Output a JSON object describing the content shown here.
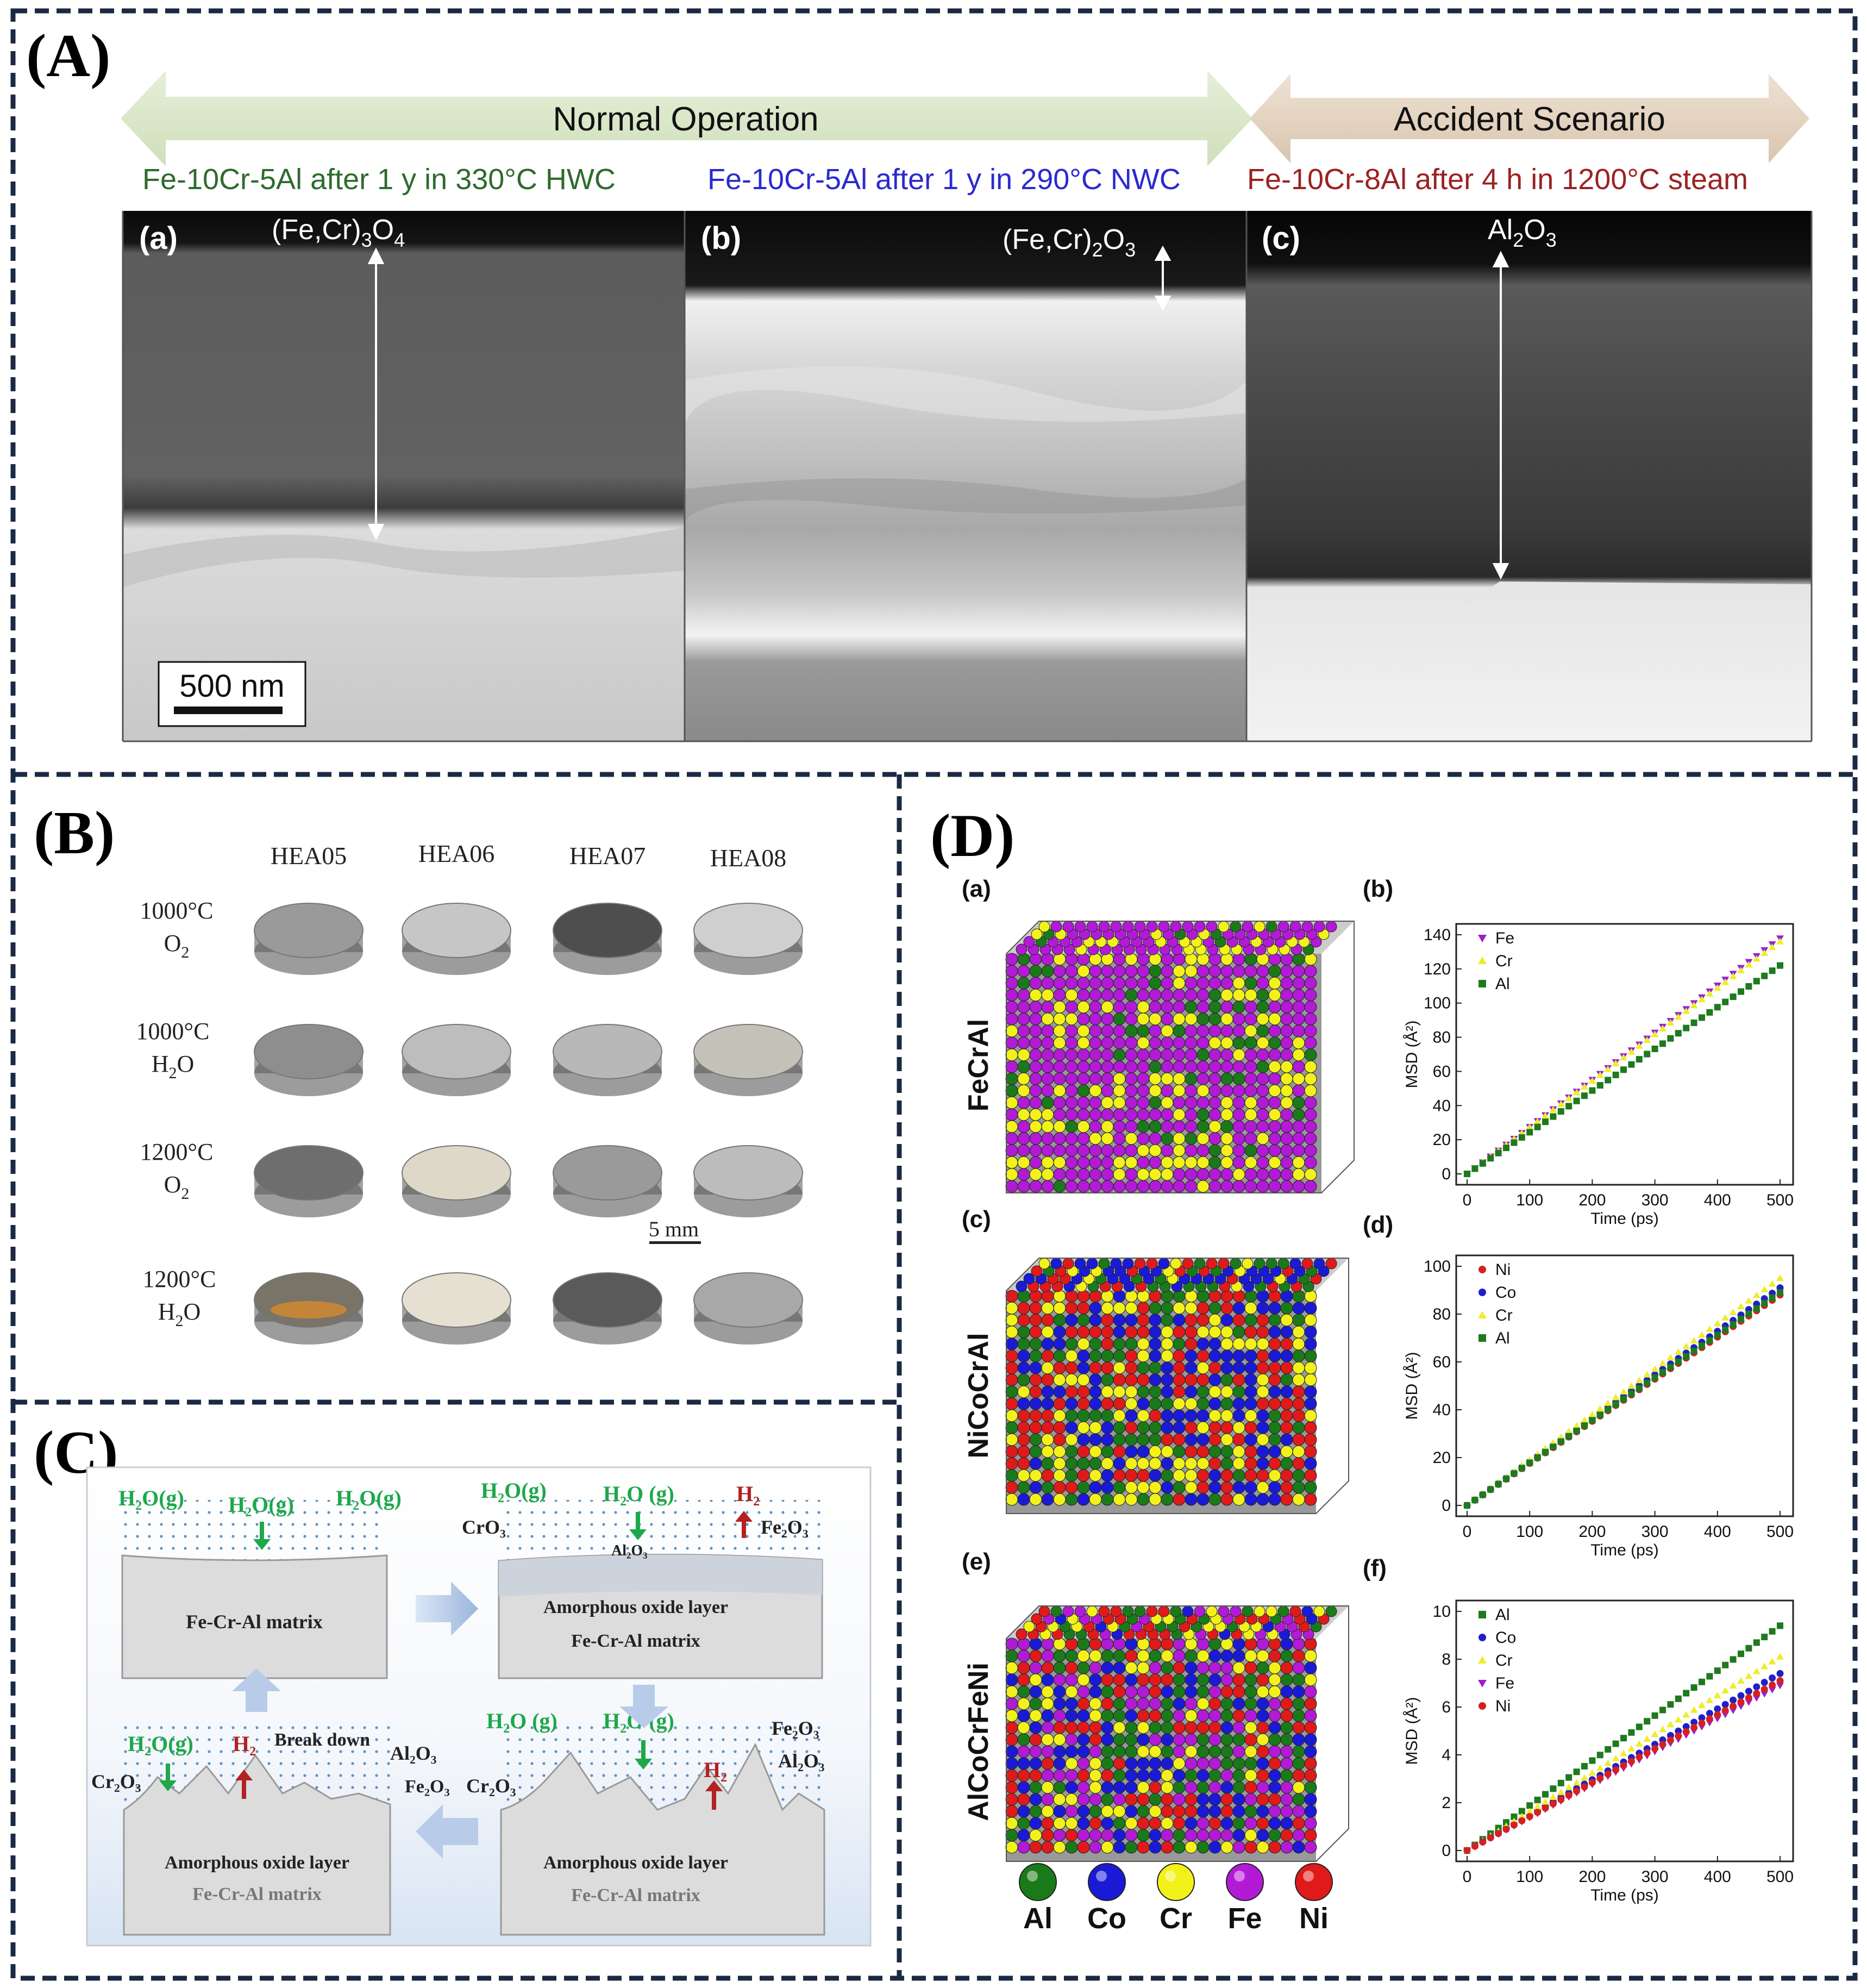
{
  "panelA": {
    "label": "(A)",
    "arrows": {
      "normal": "Normal Operation",
      "accident": "Accident Scenario"
    },
    "captions": [
      {
        "text": "Fe-10Cr-5Al after 1 y in 330°C HWC",
        "color": "#2e6b2e"
      },
      {
        "text": "Fe-10Cr-5Al after 1 y in 290°C NWC",
        "color": "#2a2ad0"
      },
      {
        "text": "Fe-10Cr-8Al after 4 h in 1200°C steam",
        "color": "#9b2222"
      }
    ],
    "sub_a": "(a)",
    "sub_b": "(b)",
    "sub_c": "(c)",
    "oxide_a": {
      "base": "(Fe,Cr)",
      "sub": "3",
      "tail": "O",
      "sub2": "4"
    },
    "oxide_b": {
      "base": "(Fe,Cr)",
      "sub": "2",
      "tail": "O",
      "sub2": "3"
    },
    "oxide_c": {
      "base": "Al",
      "sub": "2",
      "tail": "O",
      "sub2": "3"
    },
    "scale": "500 nm"
  },
  "panelB": {
    "label": "(B)",
    "columns": [
      "HEA05",
      "HEA06",
      "HEA07",
      "HEA08"
    ],
    "rows": [
      {
        "temp": "1000°C",
        "gas": "O",
        "gas_sub": "2",
        "gas_tail": ""
      },
      {
        "temp": "1000°C",
        "gas": "H",
        "gas_sub": "2",
        "gas_tail": "O"
      },
      {
        "temp": "1200°C",
        "gas": "O",
        "gas_sub": "2",
        "gas_tail": ""
      },
      {
        "temp": "1200°C",
        "gas": "H",
        "gas_sub": "2",
        "gas_tail": "O"
      }
    ],
    "scale": "5 mm"
  },
  "panelC": {
    "label": "(C)",
    "h2o": "H₂O(g)",
    "h2o_space": "H₂O (g)",
    "h2": "H₂",
    "matrix": "Fe-Cr-Al matrix",
    "amorphous": "Amorphous oxide layer",
    "cr2o3": "Cr₂O₃",
    "cro3": "CrO₃",
    "fe2o3": "Fe₂O₃",
    "al2o3": "Al₂O₃",
    "breakdown": "Break down"
  },
  "panelD": {
    "label": "(D)",
    "sublabels": [
      "(a)",
      "(b)",
      "(c)",
      "(d)",
      "(e)",
      "(f)"
    ],
    "alloys": [
      "FeCrAl",
      "NiCoCrAl",
      "AlCoCrFeNi"
    ],
    "element_legend": [
      {
        "name": "Al",
        "color": "#1a7a1a"
      },
      {
        "name": "Co",
        "color": "#1a1ad6"
      },
      {
        "name": "Cr",
        "color": "#f2f21a"
      },
      {
        "name": "Fe",
        "color": "#b21ad6"
      },
      {
        "name": "Ni",
        "color": "#e01a1a"
      }
    ]
  },
  "chart_data": [
    {
      "type": "scatter",
      "title": "(b)",
      "xlabel": "Time (ps)",
      "ylabel": "MSD (Å²)",
      "xlim": [
        0,
        500
      ],
      "ylim": [
        0,
        140
      ],
      "xticks": [
        0,
        100,
        200,
        300,
        400,
        500
      ],
      "yticks": [
        0,
        20,
        40,
        60,
        80,
        100,
        120,
        140
      ],
      "legend": "top-left",
      "series": [
        {
          "name": "Fe",
          "color": "#9b1fd0",
          "marker": "tri-down",
          "x": [
            0,
            500
          ],
          "y": [
            0,
            138
          ]
        },
        {
          "name": "Cr",
          "color": "#eded2a",
          "marker": "tri-up",
          "x": [
            0,
            500
          ],
          "y": [
            0,
            136
          ]
        },
        {
          "name": "Al",
          "color": "#1e7a1e",
          "marker": "square",
          "x": [
            0,
            500
          ],
          "y": [
            0,
            122
          ]
        }
      ]
    },
    {
      "type": "scatter",
      "title": "(d)",
      "xlabel": "Time (ps)",
      "ylabel": "MSD (Å²)",
      "xlim": [
        0,
        500
      ],
      "ylim": [
        0,
        100
      ],
      "xticks": [
        0,
        100,
        200,
        300,
        400,
        500
      ],
      "yticks": [
        0,
        20,
        40,
        60,
        80,
        100
      ],
      "legend": "top-left",
      "series": [
        {
          "name": "Ni",
          "color": "#d62020",
          "marker": "circle",
          "x": [
            0,
            500
          ],
          "y": [
            0,
            88
          ]
        },
        {
          "name": "Co",
          "color": "#2020c8",
          "marker": "circle",
          "x": [
            0,
            500
          ],
          "y": [
            0,
            91
          ]
        },
        {
          "name": "Cr",
          "color": "#eded2a",
          "marker": "tri-up",
          "x": [
            0,
            500
          ],
          "y": [
            0,
            95
          ]
        },
        {
          "name": "Al",
          "color": "#1e7a1e",
          "marker": "square",
          "x": [
            0,
            500
          ],
          "y": [
            0,
            89
          ]
        }
      ]
    },
    {
      "type": "scatter",
      "title": "(f)",
      "xlabel": "Time (ps)",
      "ylabel": "MSD (Å²)",
      "xlim": [
        0,
        500
      ],
      "ylim": [
        0,
        10
      ],
      "xticks": [
        0,
        100,
        200,
        300,
        400,
        500
      ],
      "yticks": [
        0,
        2,
        4,
        6,
        8,
        10
      ],
      "legend": "top-left",
      "series": [
        {
          "name": "Al",
          "color": "#1e7a1e",
          "marker": "square",
          "x": [
            0,
            500
          ],
          "y": [
            0,
            9.4
          ]
        },
        {
          "name": "Co",
          "color": "#2020c8",
          "marker": "circle",
          "x": [
            0,
            500
          ],
          "y": [
            0,
            7.4
          ]
        },
        {
          "name": "Cr",
          "color": "#eded2a",
          "marker": "tri-up",
          "x": [
            0,
            500
          ],
          "y": [
            0,
            8.1
          ]
        },
        {
          "name": "Fe",
          "color": "#9b1fd0",
          "marker": "tri-down",
          "x": [
            0,
            500
          ],
          "y": [
            0,
            6.9
          ]
        },
        {
          "name": "Ni",
          "color": "#d62020",
          "marker": "circle",
          "x": [
            0,
            500
          ],
          "y": [
            0,
            7.1
          ]
        }
      ]
    }
  ]
}
